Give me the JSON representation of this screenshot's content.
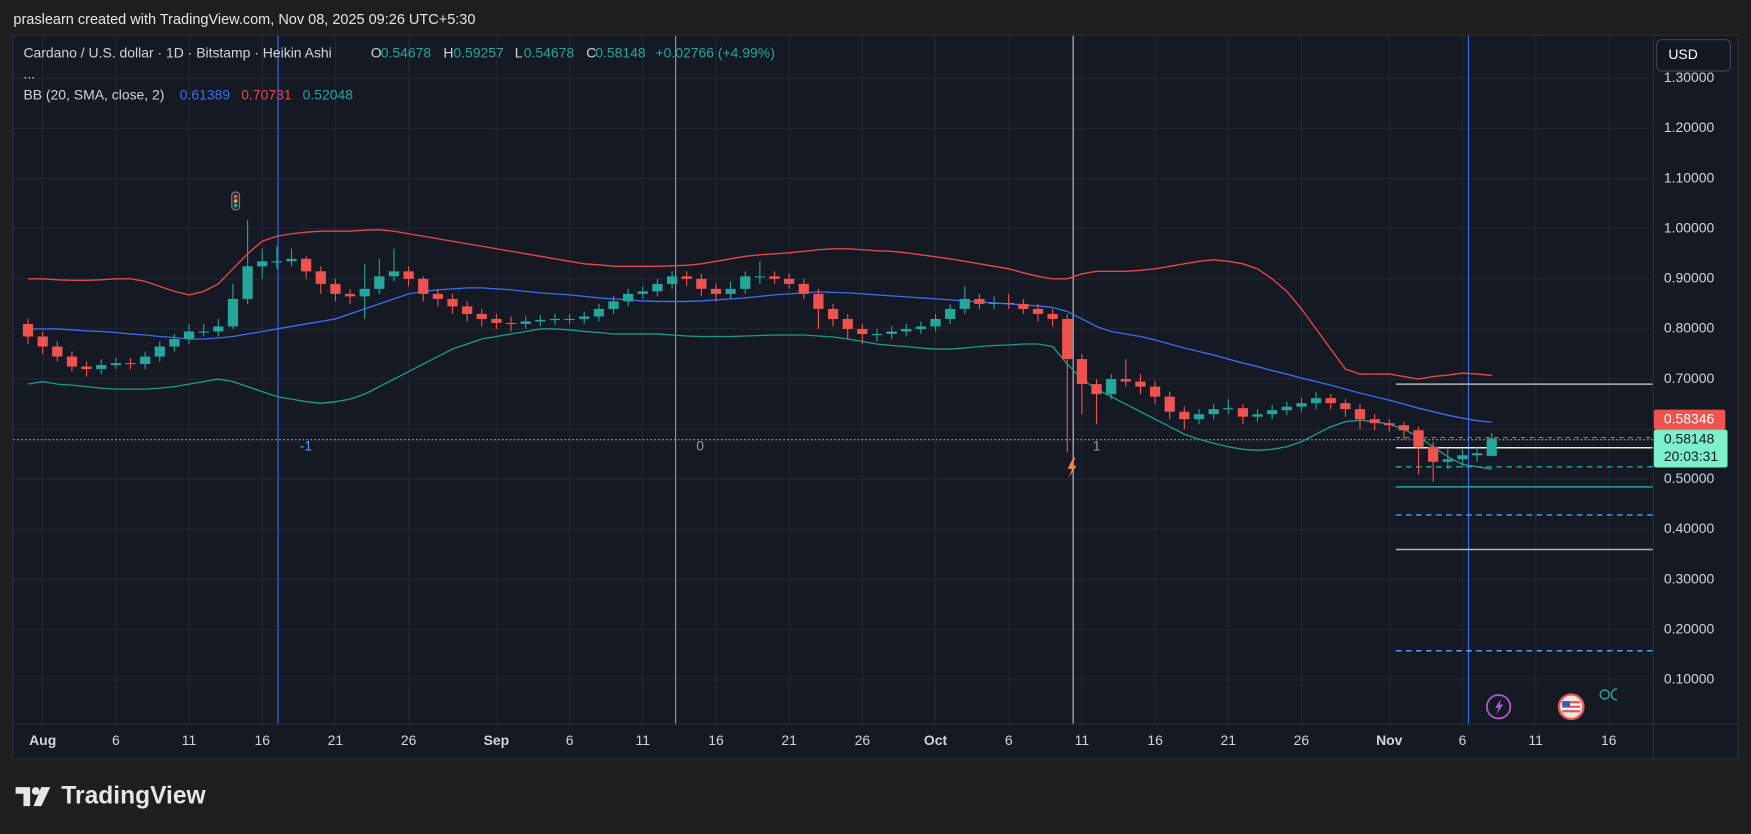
{
  "header": "praslearn created with TradingView.com, Nov 08, 2025 09:26 UTC+5:30",
  "footer_brand": "TradingView",
  "chart_data": {
    "type": "candlestick",
    "title": "Cardano / U.S. dollar · 1D · Bitstamp · Heikin Ashi",
    "ohlc_labels": [
      "O",
      "H",
      "L",
      "C"
    ],
    "change_label": "+0.02766 (+4.99%)",
    "more": "...",
    "currency": "USD",
    "countdown": "20:03:31",
    "ref_price": 0.58346,
    "annotations": [
      "-1",
      "0",
      "1"
    ],
    "up_color": "#26a69a",
    "down_color": "#ef5350",
    "grid": true,
    "ylim": [
      0.013,
      1.385
    ],
    "yticks": [
      {
        "value": 0.1,
        "label": "0.10000"
      },
      {
        "value": 0.2,
        "label": "0.20000"
      },
      {
        "value": 0.3,
        "label": "0.30000"
      },
      {
        "value": 0.4,
        "label": "0.40000"
      },
      {
        "value": 0.5,
        "label": "0.50000"
      },
      {
        "value": 0.6,
        "label": "0.60000"
      },
      {
        "value": 0.7,
        "label": "0.70000"
      },
      {
        "value": 0.8,
        "label": "0.80000"
      },
      {
        "value": 0.9,
        "label": "0.90000"
      },
      {
        "value": 1.0,
        "label": "1.00000"
      },
      {
        "value": 1.1,
        "label": "1.10000"
      },
      {
        "value": 1.2,
        "label": "1.20000"
      },
      {
        "value": 1.3,
        "label": "1.30000"
      }
    ],
    "categories": [
      null,
      "Aug",
      null,
      null,
      null,
      null,
      "6",
      null,
      null,
      null,
      null,
      "11",
      null,
      null,
      null,
      null,
      "16",
      null,
      null,
      null,
      null,
      "21",
      null,
      null,
      null,
      null,
      "26",
      null,
      null,
      null,
      null,
      null,
      "Sep",
      null,
      null,
      null,
      null,
      "6",
      null,
      null,
      null,
      null,
      "11",
      null,
      null,
      null,
      null,
      "16",
      null,
      null,
      null,
      null,
      "21",
      null,
      null,
      null,
      null,
      "26",
      null,
      null,
      null,
      null,
      "Oct",
      null,
      null,
      null,
      null,
      "6",
      null,
      null,
      null,
      null,
      "11",
      null,
      null,
      null,
      null,
      "16",
      null,
      null,
      null,
      null,
      "21",
      null,
      null,
      null,
      null,
      "26",
      null,
      null,
      null,
      null,
      null,
      "Nov",
      null,
      null,
      null,
      null,
      "6",
      null,
      null,
      null,
      null,
      "11",
      null,
      null,
      null,
      null,
      "16",
      null,
      null
    ],
    "candles": {
      "open": [
        0.81,
        0.785,
        0.765,
        0.745,
        0.725,
        0.72,
        0.728,
        0.732,
        0.73,
        0.745,
        0.765,
        0.78,
        0.795,
        0.795,
        0.805,
        0.86,
        0.925,
        0.935,
        0.935,
        0.94,
        0.915,
        0.89,
        0.87,
        0.865,
        0.88,
        0.905,
        0.915,
        0.9,
        0.87,
        0.86,
        0.845,
        0.83,
        0.82,
        0.812,
        0.81,
        0.815,
        0.818,
        0.82,
        0.82,
        0.825,
        0.84,
        0.855,
        0.87,
        0.875,
        0.89,
        0.905,
        0.9,
        0.88,
        0.87,
        0.88,
        0.905,
        0.905,
        0.9,
        0.89,
        0.87,
        0.84,
        0.82,
        0.8,
        0.79,
        0.79,
        0.795,
        0.8,
        0.805,
        0.82,
        0.84,
        0.86,
        0.85,
        0.852,
        0.85,
        0.84,
        0.83,
        0.82,
        0.74,
        0.69,
        0.67,
        0.7,
        0.695,
        0.685,
        0.665,
        0.635,
        0.62,
        0.63,
        0.64,
        0.642,
        0.625,
        0.63,
        0.638,
        0.645,
        0.652,
        0.662,
        0.652,
        0.64,
        0.62,
        0.612,
        0.608,
        0.598,
        0.565,
        0.535,
        0.54,
        0.548,
        0.54678,
        null,
        null,
        null,
        null,
        null,
        null,
        null,
        null,
        null,
        null
      ],
      "high": [
        0.82,
        0.795,
        0.775,
        0.755,
        0.735,
        0.74,
        0.742,
        0.742,
        0.755,
        0.775,
        0.79,
        0.81,
        0.81,
        0.82,
        0.89,
        1.017,
        0.96,
        0.965,
        0.96,
        0.945,
        0.925,
        0.9,
        0.88,
        0.93,
        0.94,
        0.96,
        0.925,
        0.905,
        0.88,
        0.87,
        0.855,
        0.84,
        0.83,
        0.825,
        0.825,
        0.828,
        0.83,
        0.83,
        0.835,
        0.85,
        0.865,
        0.88,
        0.885,
        0.9,
        0.915,
        0.915,
        0.91,
        0.89,
        0.895,
        0.915,
        0.935,
        0.915,
        0.91,
        0.9,
        0.88,
        0.85,
        0.83,
        0.81,
        0.8,
        0.805,
        0.81,
        0.815,
        0.83,
        0.85,
        0.885,
        0.87,
        0.865,
        0.87,
        0.86,
        0.85,
        0.84,
        0.83,
        0.75,
        0.7,
        0.71,
        0.74,
        0.71,
        0.695,
        0.675,
        0.645,
        0.64,
        0.65,
        0.66,
        0.65,
        0.64,
        0.648,
        0.655,
        0.662,
        0.675,
        0.67,
        0.66,
        0.65,
        0.63,
        0.62,
        0.615,
        0.605,
        0.575,
        0.56,
        0.56,
        0.565,
        0.59257,
        null,
        null,
        null,
        null,
        null,
        null,
        null,
        null,
        null,
        null
      ],
      "low": [
        0.77,
        0.75,
        0.735,
        0.715,
        0.705,
        0.71,
        0.72,
        0.72,
        0.72,
        0.735,
        0.755,
        0.77,
        0.785,
        0.785,
        0.8,
        0.85,
        0.9,
        0.92,
        0.925,
        0.9,
        0.87,
        0.855,
        0.85,
        0.82,
        0.87,
        0.895,
        0.885,
        0.855,
        0.845,
        0.83,
        0.815,
        0.805,
        0.8,
        0.795,
        0.8,
        0.805,
        0.808,
        0.81,
        0.81,
        0.815,
        0.83,
        0.845,
        0.86,
        0.865,
        0.88,
        0.885,
        0.865,
        0.855,
        0.86,
        0.87,
        0.89,
        0.89,
        0.88,
        0.86,
        0.8,
        0.805,
        0.78,
        0.77,
        0.775,
        0.78,
        0.785,
        0.79,
        0.795,
        0.81,
        0.83,
        0.84,
        0.84,
        0.84,
        0.83,
        0.815,
        0.805,
        0.554,
        0.63,
        0.61,
        0.66,
        0.685,
        0.67,
        0.65,
        0.62,
        0.6,
        0.61,
        0.62,
        0.63,
        0.61,
        0.615,
        0.62,
        0.628,
        0.635,
        0.64,
        0.64,
        0.625,
        0.6,
        0.598,
        0.595,
        0.58,
        0.51,
        0.495,
        0.52,
        0.525,
        0.535,
        0.54678,
        null,
        null,
        null,
        null,
        null,
        null,
        null,
        null,
        null,
        null
      ],
      "close": [
        0.785,
        0.765,
        0.745,
        0.725,
        0.72,
        0.728,
        0.732,
        0.73,
        0.745,
        0.765,
        0.78,
        0.795,
        0.795,
        0.805,
        0.86,
        0.925,
        0.935,
        0.935,
        0.94,
        0.915,
        0.89,
        0.87,
        0.865,
        0.88,
        0.905,
        0.915,
        0.9,
        0.87,
        0.86,
        0.845,
        0.83,
        0.82,
        0.812,
        0.81,
        0.815,
        0.818,
        0.82,
        0.82,
        0.825,
        0.84,
        0.855,
        0.87,
        0.875,
        0.89,
        0.905,
        0.9,
        0.88,
        0.87,
        0.88,
        0.905,
        0.905,
        0.9,
        0.89,
        0.87,
        0.84,
        0.82,
        0.8,
        0.79,
        0.79,
        0.795,
        0.8,
        0.805,
        0.82,
        0.84,
        0.86,
        0.85,
        0.852,
        0.85,
        0.84,
        0.83,
        0.82,
        0.74,
        0.69,
        0.67,
        0.7,
        0.695,
        0.685,
        0.665,
        0.635,
        0.62,
        0.63,
        0.64,
        0.642,
        0.625,
        0.63,
        0.638,
        0.645,
        0.652,
        0.662,
        0.652,
        0.64,
        0.62,
        0.612,
        0.608,
        0.598,
        0.565,
        0.535,
        0.54,
        0.548,
        0.552,
        0.58148,
        null,
        null,
        null,
        null,
        null,
        null,
        null,
        null,
        null,
        null
      ]
    },
    "bollinger": {
      "name": "BB (20, SMA, close, 2)",
      "colors": {
        "middle": "#3d6ef0",
        "upper": "#e8474e",
        "lower": "#1f9b8a"
      },
      "middle": [
        0.8,
        0.8,
        0.8,
        0.798,
        0.796,
        0.795,
        0.793,
        0.79,
        0.788,
        0.785,
        0.783,
        0.78,
        0.78,
        0.782,
        0.785,
        0.79,
        0.795,
        0.8,
        0.805,
        0.81,
        0.815,
        0.82,
        0.83,
        0.84,
        0.85,
        0.86,
        0.87,
        0.875,
        0.878,
        0.88,
        0.882,
        0.882,
        0.88,
        0.878,
        0.875,
        0.872,
        0.87,
        0.868,
        0.865,
        0.862,
        0.86,
        0.858,
        0.856,
        0.855,
        0.855,
        0.855,
        0.856,
        0.858,
        0.86,
        0.862,
        0.865,
        0.868,
        0.87,
        0.872,
        0.874,
        0.873,
        0.872,
        0.87,
        0.868,
        0.866,
        0.864,
        0.862,
        0.86,
        0.858,
        0.856,
        0.854,
        0.852,
        0.85,
        0.848,
        0.846,
        0.843,
        0.835,
        0.82,
        0.805,
        0.795,
        0.79,
        0.785,
        0.778,
        0.77,
        0.762,
        0.755,
        0.748,
        0.74,
        0.732,
        0.725,
        0.717,
        0.71,
        0.702,
        0.695,
        0.688,
        0.68,
        0.672,
        0.665,
        0.658,
        0.65,
        0.642,
        0.635,
        0.628,
        0.622,
        0.617,
        0.61389,
        null,
        null,
        null,
        null,
        null,
        null,
        null,
        null,
        null,
        null
      ],
      "upper": [
        0.9,
        0.9,
        0.898,
        0.897,
        0.897,
        0.898,
        0.9,
        0.9,
        0.895,
        0.885,
        0.875,
        0.868,
        0.875,
        0.89,
        0.92,
        0.95,
        0.975,
        0.985,
        0.99,
        0.993,
        0.995,
        0.995,
        0.995,
        0.997,
        0.998,
        0.995,
        0.99,
        0.985,
        0.98,
        0.975,
        0.97,
        0.965,
        0.96,
        0.955,
        0.95,
        0.945,
        0.94,
        0.935,
        0.93,
        0.928,
        0.925,
        0.925,
        0.925,
        0.925,
        0.926,
        0.927,
        0.93,
        0.935,
        0.94,
        0.945,
        0.948,
        0.95,
        0.952,
        0.955,
        0.958,
        0.96,
        0.96,
        0.958,
        0.956,
        0.955,
        0.952,
        0.948,
        0.944,
        0.94,
        0.935,
        0.93,
        0.925,
        0.92,
        0.912,
        0.905,
        0.9,
        0.9,
        0.91,
        0.915,
        0.915,
        0.915,
        0.917,
        0.92,
        0.925,
        0.93,
        0.935,
        0.938,
        0.935,
        0.93,
        0.92,
        0.9,
        0.875,
        0.84,
        0.8,
        0.76,
        0.72,
        0.71,
        0.71,
        0.71,
        0.705,
        0.7,
        0.705,
        0.708,
        0.712,
        0.71,
        0.70731,
        null,
        null,
        null,
        null,
        null,
        null,
        null,
        null,
        null,
        null
      ],
      "lower": [
        0.69,
        0.695,
        0.69,
        0.688,
        0.685,
        0.682,
        0.68,
        0.68,
        0.68,
        0.682,
        0.685,
        0.69,
        0.695,
        0.7,
        0.695,
        0.685,
        0.675,
        0.665,
        0.66,
        0.655,
        0.652,
        0.655,
        0.66,
        0.67,
        0.685,
        0.7,
        0.715,
        0.73,
        0.745,
        0.76,
        0.77,
        0.78,
        0.785,
        0.79,
        0.795,
        0.8,
        0.8,
        0.798,
        0.795,
        0.793,
        0.79,
        0.79,
        0.79,
        0.79,
        0.788,
        0.786,
        0.785,
        0.785,
        0.785,
        0.786,
        0.787,
        0.788,
        0.788,
        0.788,
        0.786,
        0.784,
        0.78,
        0.775,
        0.77,
        0.767,
        0.765,
        0.762,
        0.76,
        0.76,
        0.762,
        0.765,
        0.767,
        0.768,
        0.77,
        0.77,
        0.765,
        0.73,
        0.7,
        0.68,
        0.665,
        0.65,
        0.635,
        0.62,
        0.605,
        0.59,
        0.58,
        0.572,
        0.565,
        0.56,
        0.558,
        0.56,
        0.565,
        0.575,
        0.59,
        0.605,
        0.615,
        0.618,
        0.615,
        0.61,
        0.6,
        0.585,
        0.565,
        0.545,
        0.53,
        0.525,
        0.52048,
        null,
        null,
        null,
        null,
        null,
        null,
        null,
        null,
        null,
        null
      ]
    },
    "levels": [
      {
        "value": 0.69,
        "color": "#b2b5be",
        "dash": false,
        "full": false
      },
      {
        "value": 0.579,
        "color": "#b2b5be",
        "dash": true,
        "full": true
      },
      {
        "value": 0.563,
        "color": "#d9f2dc",
        "dash": false,
        "full": false
      },
      {
        "value": 0.525,
        "color": "#26a69a",
        "dash": true,
        "full": false
      },
      {
        "value": 0.485,
        "color": "#26a69a",
        "dash": false,
        "full": false
      },
      {
        "value": 0.429,
        "color": "#5b9cf6",
        "dash": true,
        "full": false
      },
      {
        "value": 0.36,
        "color": "#b2b5be",
        "dash": false,
        "full": false
      },
      {
        "value": 0.158,
        "color": "#5b9cf6",
        "dash": true,
        "full": false
      }
    ]
  }
}
